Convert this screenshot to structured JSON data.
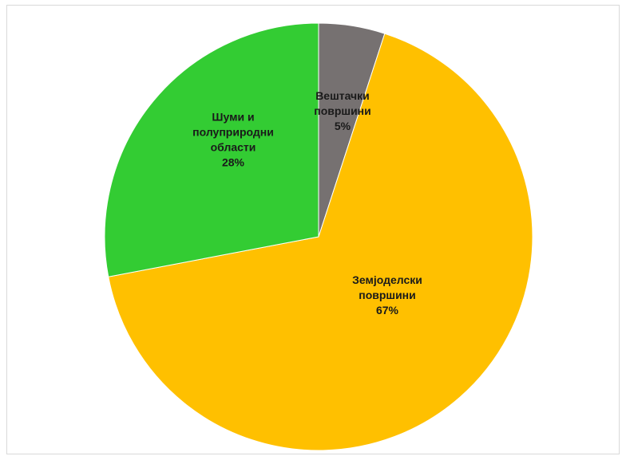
{
  "chart_data": {
    "type": "pie",
    "title": "",
    "slices": [
      {
        "label": [
          "Вештачки",
          "површини",
          "5%"
        ],
        "value": 5,
        "color": "#767171"
      },
      {
        "label": [
          "Земјоделски",
          "површини",
          "67%"
        ],
        "value": 67,
        "color": "#FFC000"
      },
      {
        "label": [
          "Шуми и",
          "полуприродни",
          "области",
          "28%"
        ],
        "value": 28,
        "color": "#33CC33"
      }
    ],
    "start_angle_deg": 0,
    "direction": "clockwise",
    "legend": "none"
  }
}
